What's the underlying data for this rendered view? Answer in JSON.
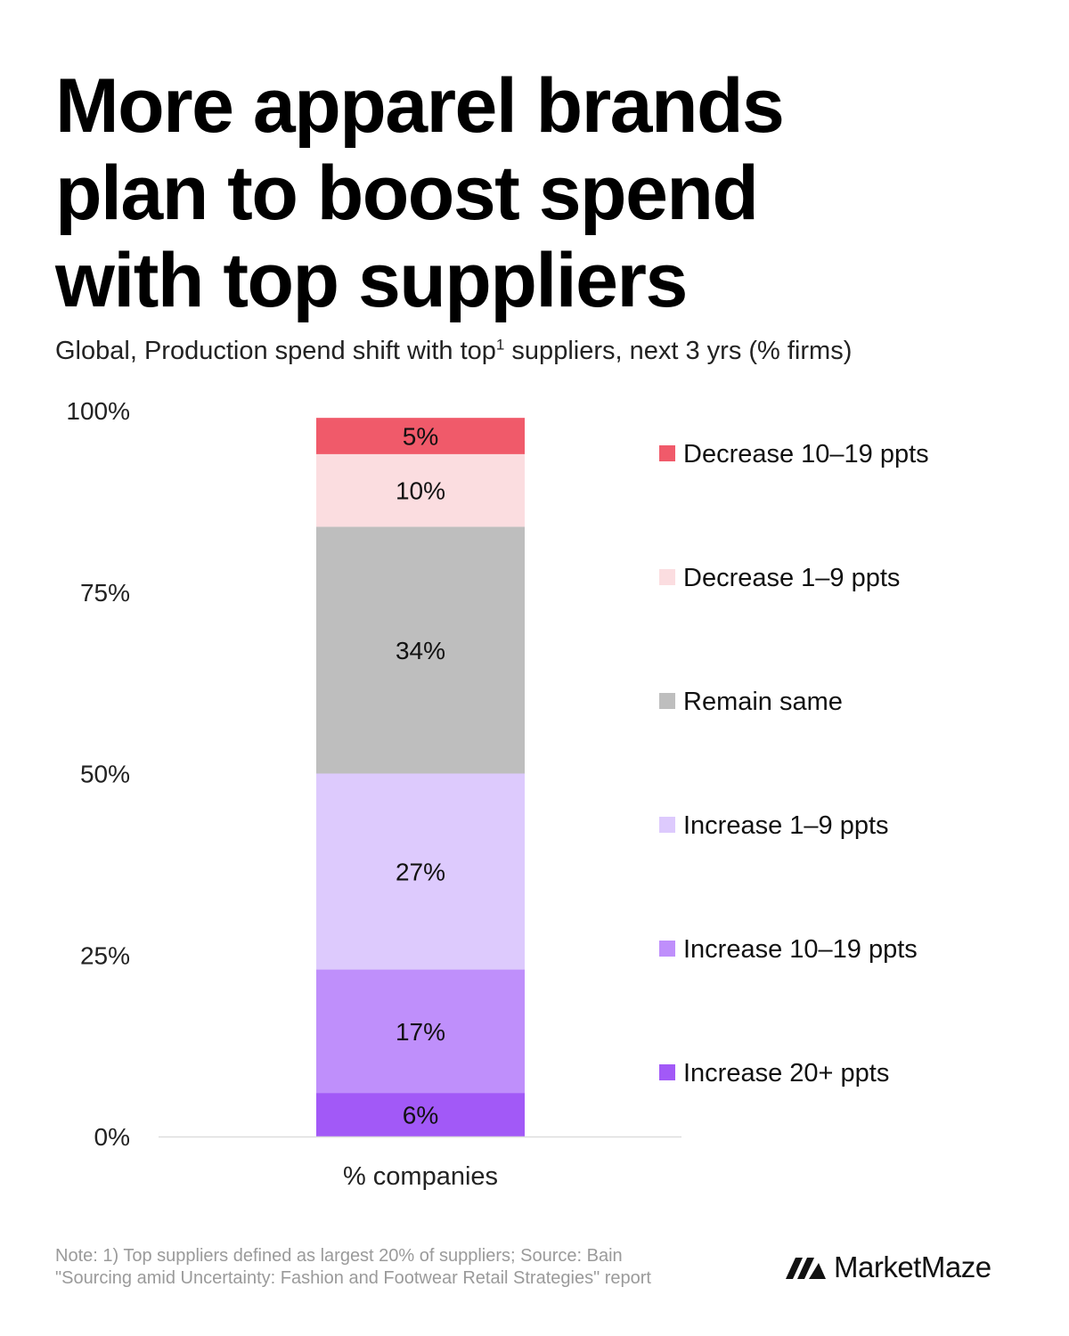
{
  "header": {
    "title_lines": [
      "More apparel brands",
      "plan to boost spend",
      "with top suppliers"
    ],
    "subtitle_pre": "Global, Production spend shift with top",
    "subtitle_sup": "1",
    "subtitle_post": " suppliers, next 3 yrs (% firms)"
  },
  "chart_data": {
    "type": "bar",
    "stacked": true,
    "categories": [
      "% companies"
    ],
    "xlabel": "% companies",
    "ylim": [
      0,
      100
    ],
    "yticks": [
      0,
      25,
      50,
      75,
      100
    ],
    "ytick_labels": [
      "0%",
      "25%",
      "50%",
      "75%",
      "100%"
    ],
    "legend_position": "right",
    "series": [
      {
        "name": "Increase 20+ ppts",
        "values": [
          6
        ],
        "label": "6%",
        "color": "#a259f7"
      },
      {
        "name": "Increase 10–19 ppts",
        "values": [
          17
        ],
        "label": "17%",
        "color": "#bf8ffb"
      },
      {
        "name": "Increase 1–9 ppts",
        "values": [
          27
        ],
        "label": "27%",
        "color": "#ddcafd"
      },
      {
        "name": "Remain same",
        "values": [
          34
        ],
        "label": "34%",
        "color": "#bebebe"
      },
      {
        "name": "Decrease 1–9 ppts",
        "values": [
          10
        ],
        "label": "10%",
        "color": "#fbdde0"
      },
      {
        "name": "Decrease 10–19 ppts",
        "values": [
          5
        ],
        "label": "5%",
        "color": "#f05a6a"
      }
    ]
  },
  "footer": {
    "note_lines": [
      "Note: 1) Top suppliers defined as largest 20% of suppliers;  Source: Bain",
      "\"Sourcing amid Uncertainty: Fashion and Footwear Retail Strategies\" report"
    ],
    "brand": "MarketMaze",
    "brand_icon": "marketmaze-logo-icon"
  }
}
